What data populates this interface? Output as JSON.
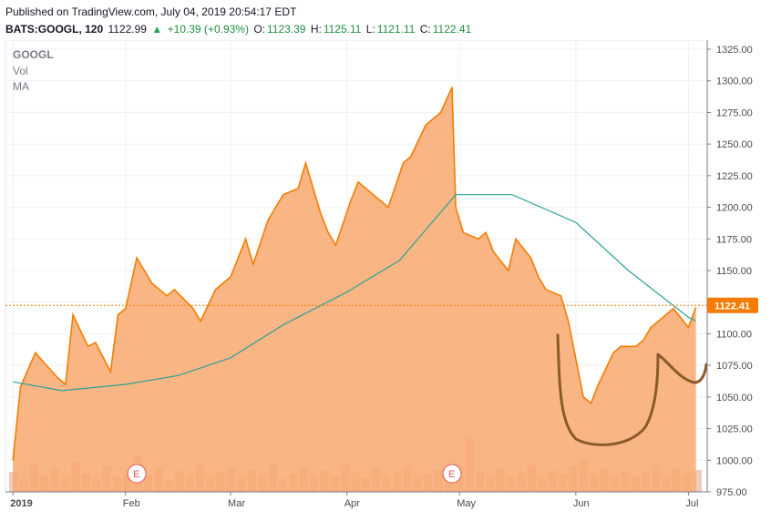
{
  "header": {
    "published": "Published on TradingView.com, July 04, 2019 20:54:17 EDT",
    "symbol": "BATS:GOOGL, 120",
    "last": "1122.99",
    "change": "+10.39 (+0.93%)",
    "open_label": "O:",
    "open": "1123.39",
    "high_label": "H:",
    "high": "1125.11",
    "low_label": "L:",
    "low": "1121.11",
    "close_label": "C:",
    "close": "1122.41"
  },
  "legend": {
    "symbol": "GOOGL",
    "vol": "Vol",
    "ma": "MA"
  },
  "price_tag": "1122.41",
  "earnings_marker": "E",
  "colors": {
    "price_line": "#f57c00",
    "area_fill": "#f9a86e",
    "ma_line": "#2aa198",
    "annotation": "#8b5a2b",
    "tag_bg": "#f57c00"
  },
  "chart_data": {
    "type": "area",
    "series": [
      {
        "name": "GOOGL",
        "x": [
          "2019-01-02",
          "2019-01-04",
          "2019-01-08",
          "2019-01-10",
          "2019-01-14",
          "2019-01-16",
          "2019-01-18",
          "2019-01-22",
          "2019-01-24",
          "2019-01-28",
          "2019-01-30",
          "2019-02-01",
          "2019-02-04",
          "2019-02-06",
          "2019-02-08",
          "2019-02-12",
          "2019-02-14",
          "2019-02-19",
          "2019-02-21",
          "2019-02-25",
          "2019-02-27",
          "2019-03-01",
          "2019-03-05",
          "2019-03-07",
          "2019-03-11",
          "2019-03-13",
          "2019-03-15",
          "2019-03-19",
          "2019-03-21",
          "2019-03-25",
          "2019-03-27",
          "2019-03-29",
          "2019-04-02",
          "2019-04-04",
          "2019-04-08",
          "2019-04-10",
          "2019-04-12",
          "2019-04-16",
          "2019-04-18",
          "2019-04-22",
          "2019-04-24",
          "2019-04-26",
          "2019-04-29",
          "2019-04-30",
          "2019-05-02",
          "2019-05-06",
          "2019-05-08",
          "2019-05-10",
          "2019-05-14",
          "2019-05-16",
          "2019-05-20",
          "2019-05-22",
          "2019-05-24",
          "2019-05-28",
          "2019-05-30",
          "2019-06-03",
          "2019-06-05",
          "2019-06-07",
          "2019-06-11",
          "2019-06-13",
          "2019-06-17",
          "2019-06-19",
          "2019-06-21",
          "2019-06-25",
          "2019-06-27",
          "2019-07-01",
          "2019-07-03"
        ],
        "values": [
          1000,
          1058,
          1085,
          1078,
          1065,
          1060,
          1115,
          1090,
          1093,
          1070,
          1115,
          1120,
          1160,
          1150,
          1140,
          1130,
          1135,
          1120,
          1110,
          1135,
          1140,
          1145,
          1175,
          1155,
          1190,
          1200,
          1210,
          1215,
          1235,
          1195,
          1180,
          1170,
          1205,
          1220,
          1210,
          1205,
          1200,
          1235,
          1240,
          1265,
          1270,
          1275,
          1295,
          1200,
          1180,
          1175,
          1180,
          1165,
          1150,
          1175,
          1160,
          1145,
          1135,
          1130,
          1110,
          1050,
          1045,
          1060,
          1085,
          1090,
          1090,
          1095,
          1105,
          1115,
          1120,
          1105,
          1121
        ]
      },
      {
        "name": "MA",
        "x": [
          "2019-01-02",
          "2019-01-15",
          "2019-02-01",
          "2019-02-15",
          "2019-03-01",
          "2019-03-15",
          "2019-04-01",
          "2019-04-15",
          "2019-04-30",
          "2019-05-15",
          "2019-06-01",
          "2019-06-15",
          "2019-07-01",
          "2019-07-03"
        ],
        "values": [
          1062,
          1055,
          1060,
          1067,
          1081,
          1107,
          1133,
          1158,
          1210,
          1210,
          1188,
          1150,
          1113,
          1110
        ]
      }
    ],
    "volume": [
      22,
      12,
      30,
      18,
      25,
      15,
      33,
      20,
      14,
      28,
      17,
      21,
      40,
      19,
      26,
      13,
      23,
      18,
      30,
      16,
      22,
      27,
      15,
      24,
      19,
      31,
      14,
      20,
      26,
      18,
      23,
      17,
      29,
      21,
      15,
      25,
      18,
      22,
      28,
      16,
      20,
      24,
      19,
      27,
      60,
      22,
      18,
      25,
      17,
      21,
      30,
      16,
      24,
      19,
      28,
      35,
      20,
      26,
      18,
      23,
      17,
      22,
      29,
      16,
      25,
      20,
      24
    ],
    "earnings_x": [
      "2019-02-04",
      "2019-04-29"
    ],
    "xlabel": "",
    "ylabel": "",
    "x_ticks": [
      "2019",
      "Feb",
      "Mar",
      "Apr",
      "May",
      "Jun",
      "Jul"
    ],
    "y_ticks": [
      "1325.00",
      "1300.00",
      "1275.00",
      "1250.00",
      "1225.00",
      "1200.00",
      "1175.00",
      "1150.00",
      "1125.00",
      "1100.00",
      "1075.00",
      "1050.00",
      "1025.00",
      "1000.00",
      "975.00"
    ],
    "ylim": [
      975,
      1325
    ],
    "grid": true,
    "last_price": 1122.41
  }
}
